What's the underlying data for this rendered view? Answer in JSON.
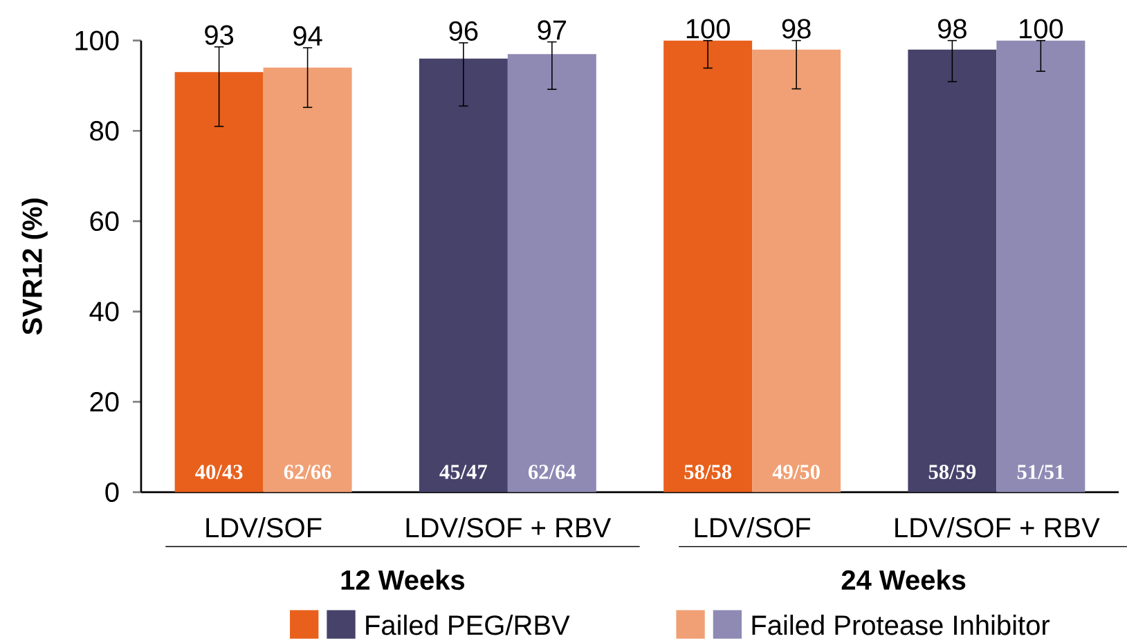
{
  "chart_data": {
    "type": "bar",
    "ylabel": "SVR12 (%)",
    "categories": [
      "LDV/SOF",
      "LDV/SOF + RBV",
      "LDV/SOF",
      "LDV/SOF + RBV"
    ],
    "series": [
      {
        "name": "Failed PEG/RBV",
        "colors": [
          "#e8601c",
          "#46426a",
          "#e8601c",
          "#46426a"
        ],
        "values": [
          93,
          96,
          100,
          98
        ],
        "errors": [
          [
            81,
            98.6
          ],
          [
            85.5,
            99.5
          ],
          [
            93.9,
            100
          ],
          [
            90.9,
            100
          ]
        ]
      },
      {
        "name": "Failed Protease Inhibitor",
        "colors": [
          "#f0a074",
          "#8e8ab4",
          "#f0a074",
          "#8e8ab4"
        ],
        "values": [
          94,
          97,
          98,
          100
        ],
        "errors": [
          [
            85.2,
            98.4
          ],
          [
            89.2,
            99.7
          ],
          [
            89.3,
            100
          ],
          [
            93.2,
            100
          ]
        ]
      }
    ],
    "ylim": [
      0,
      100
    ],
    "yticks": [
      0,
      20,
      40,
      60,
      80,
      100
    ],
    "data_labels": true,
    "legend": "bottom",
    "annotations": [
      "40/43",
      "62/66",
      "45/47",
      "62/64",
      "58/58",
      "49/50",
      "58/59",
      "51/51",
      "12 Weeks",
      "24 Weeks"
    ]
  }
}
